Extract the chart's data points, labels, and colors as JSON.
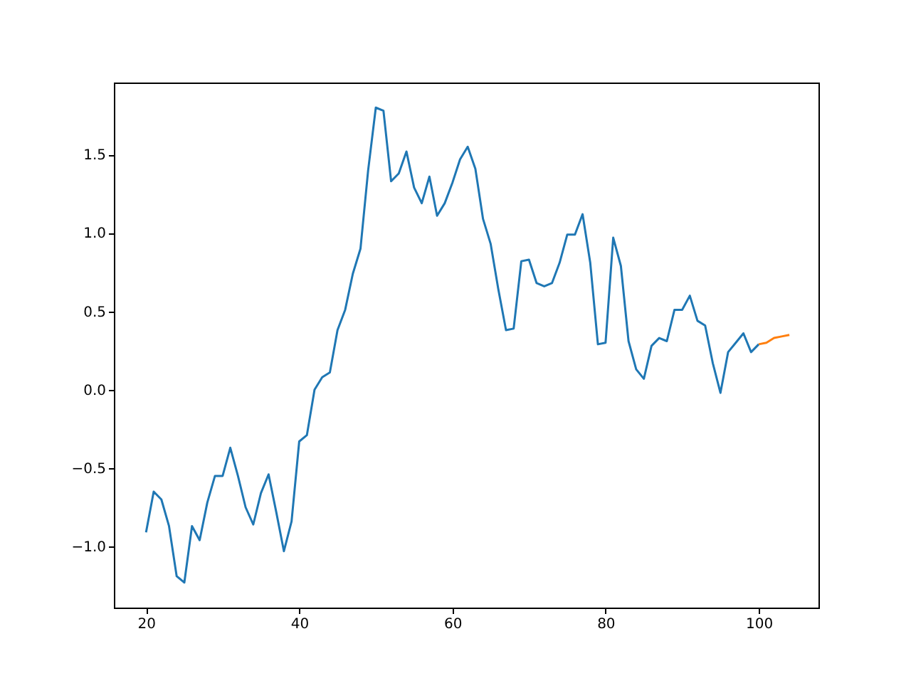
{
  "chart_data": {
    "type": "line",
    "xlim": [
      15.8,
      107.8
    ],
    "ylim": [
      -1.39,
      1.96
    ],
    "xticks": [
      20,
      40,
      60,
      80,
      100
    ],
    "yticks": [
      {
        "value": -1.0,
        "label": "−1.0"
      },
      {
        "value": -0.5,
        "label": "−0.5"
      },
      {
        "value": 0.0,
        "label": "0.0"
      },
      {
        "value": 0.5,
        "label": "0.5"
      },
      {
        "value": 1.0,
        "label": "1.0"
      },
      {
        "value": 1.5,
        "label": "1.5"
      }
    ],
    "grid": false,
    "series": [
      {
        "color": "#1f77b4",
        "x": [
          20,
          21,
          22,
          23,
          24,
          25,
          26,
          27,
          28,
          29,
          30,
          31,
          32,
          33,
          34,
          35,
          36,
          37,
          38,
          39,
          40,
          41,
          42,
          43,
          44,
          45,
          46,
          47,
          48,
          49,
          50,
          51,
          52,
          53,
          54,
          55,
          56,
          57,
          58,
          59,
          60,
          61,
          62,
          63,
          64,
          65,
          66,
          67,
          68,
          69,
          70,
          71,
          72,
          73,
          74,
          75,
          76,
          77,
          78,
          79,
          80,
          81,
          82,
          83,
          84,
          85,
          86,
          87,
          88,
          89,
          90,
          91,
          92,
          93,
          94,
          95,
          96,
          97,
          98,
          99,
          100
        ],
        "values": [
          -0.91,
          -0.65,
          -0.7,
          -0.87,
          -1.19,
          -1.23,
          -0.87,
          -0.96,
          -0.72,
          -0.55,
          -0.55,
          -0.37,
          -0.55,
          -0.75,
          -0.86,
          -0.66,
          -0.54,
          -0.78,
          -1.03,
          -0.84,
          -0.33,
          -0.29,
          0.0,
          0.08,
          0.11,
          0.38,
          0.51,
          0.74,
          0.9,
          1.4,
          1.8,
          1.78,
          1.33,
          1.38,
          1.52,
          1.29,
          1.19,
          1.36,
          1.11,
          1.19,
          1.32,
          1.47,
          1.55,
          1.41,
          1.09,
          0.93,
          0.64,
          0.38,
          0.39,
          0.82,
          0.83,
          0.68,
          0.66,
          0.68,
          0.81,
          0.99,
          0.99,
          1.12,
          0.81,
          0.29,
          0.3,
          0.97,
          0.79,
          0.31,
          0.13,
          0.07,
          0.28,
          0.33,
          0.31,
          0.51,
          0.51,
          0.6,
          0.44,
          0.41,
          0.17,
          -0.02,
          0.24,
          0.3,
          0.36,
          0.24,
          0.29
        ]
      },
      {
        "color": "#ff7f0e",
        "x": [
          100,
          101,
          102,
          103,
          104
        ],
        "values": [
          0.29,
          0.3,
          0.33,
          0.34,
          0.35
        ]
      }
    ]
  }
}
